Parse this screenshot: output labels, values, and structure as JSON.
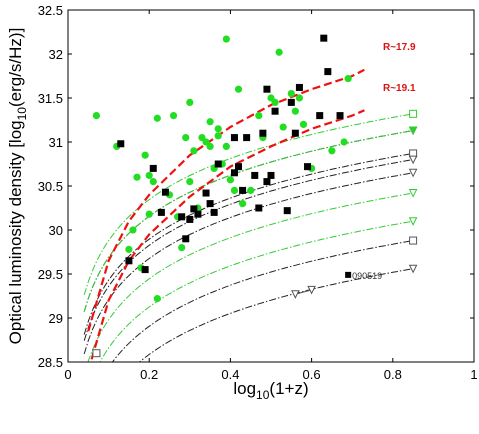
{
  "chart_data": {
    "type": "scatter",
    "xlabel_main": "log",
    "xlabel_sub": "10",
    "xlabel_tail": "(1+z)",
    "ylabel_main": "Optical luminosity density [log",
    "ylabel_sub": "10",
    "ylabel_tail": "(erg/s/Hz)]",
    "xlim": [
      0,
      1
    ],
    "ylim": [
      28.5,
      32.5
    ],
    "xticks": [
      "0",
      "0.2",
      "0.4",
      "0.6",
      "0.8",
      "1"
    ],
    "xtick_values": [
      0,
      0.2,
      0.4,
      0.6,
      0.8,
      1
    ],
    "yticks": [
      "28.5",
      "29",
      "29.5",
      "30",
      "30.5",
      "31",
      "31.5",
      "32",
      "32.5"
    ],
    "ytick_values": [
      28.5,
      29,
      29.5,
      30,
      30.5,
      31,
      31.5,
      32,
      32.5
    ],
    "grid": false,
    "colors": {
      "green": "#22dd22",
      "black": "#000000",
      "red": "#ee1111",
      "green_curve": "#33cc33",
      "black_curve": "#222222",
      "gray_marker": "#555555"
    },
    "annotations": {
      "r179": "R~17.9",
      "r191": "R~19.1",
      "grb": "090519"
    },
    "red_curves": [
      {
        "label_key": "r179",
        "x": [
          0.05,
          0.1,
          0.15,
          0.2,
          0.3,
          0.4,
          0.5,
          0.6,
          0.7,
          0.73
        ],
        "y": [
          28.85,
          29.65,
          30.1,
          30.4,
          30.85,
          31.17,
          31.42,
          31.6,
          31.75,
          31.82
        ]
      },
      {
        "label_key": "r191",
        "x": [
          0.05,
          0.1,
          0.15,
          0.2,
          0.3,
          0.4,
          0.5,
          0.6,
          0.7,
          0.73
        ],
        "y": [
          28.4,
          29.2,
          29.65,
          29.95,
          30.38,
          30.72,
          30.95,
          31.15,
          31.3,
          31.36
        ]
      }
    ],
    "model_curves": [
      {
        "color": "green",
        "style": "dash-dot",
        "y_end": 31.32,
        "marker": "square-open"
      },
      {
        "color": "black",
        "style": "dash-dot",
        "y_end": 31.13,
        "marker": "tri-down-open"
      },
      {
        "color": "green",
        "style": "dash-dot",
        "y_end": 31.13,
        "marker": "tri-down-filled"
      },
      {
        "color": "black",
        "style": "dash-dot",
        "y_end": 30.87,
        "marker": "square-open"
      },
      {
        "color": "black",
        "style": "dash-dot",
        "y_end": 30.8,
        "marker": "tri-down-open"
      },
      {
        "color": "black",
        "style": "dash-dot",
        "y_end": 30.65,
        "marker": "tri-down-open"
      },
      {
        "color": "green",
        "style": "dash-dot",
        "y_end": 30.42,
        "marker": "tri-down-open"
      },
      {
        "color": "green",
        "style": "dash-dot",
        "y_end": 30.1,
        "marker": "tri-down-open"
      },
      {
        "color": "black",
        "style": "dash-dot",
        "y_end": 29.88,
        "marker": "square-open"
      },
      {
        "color": "black",
        "style": "dash-dot",
        "y_end": 29.56,
        "marker": "tri-down-open"
      }
    ],
    "model_curve_x_end": 0.85,
    "series": [
      {
        "name": "",
        "marker": "circle",
        "color": "green",
        "points": [
          [
            0.07,
            31.3
          ],
          [
            0.12,
            30.95
          ],
          [
            0.15,
            29.78
          ],
          [
            0.16,
            30.0
          ],
          [
            0.17,
            30.6
          ],
          [
            0.18,
            29.57
          ],
          [
            0.19,
            30.85
          ],
          [
            0.2,
            30.62
          ],
          [
            0.2,
            30.18
          ],
          [
            0.21,
            30.55
          ],
          [
            0.22,
            31.27
          ],
          [
            0.22,
            29.22
          ],
          [
            0.25,
            30.4
          ],
          [
            0.26,
            31.3
          ],
          [
            0.27,
            30.15
          ],
          [
            0.28,
            29.8
          ],
          [
            0.29,
            31.05
          ],
          [
            0.3,
            31.45
          ],
          [
            0.3,
            30.55
          ],
          [
            0.31,
            30.9
          ],
          [
            0.32,
            30.25
          ],
          [
            0.33,
            31.05
          ],
          [
            0.34,
            31.0
          ],
          [
            0.35,
            31.23
          ],
          [
            0.35,
            30.95
          ],
          [
            0.36,
            30.7
          ],
          [
            0.37,
            31.15
          ],
          [
            0.37,
            31.07
          ],
          [
            0.38,
            30.75
          ],
          [
            0.39,
            30.95
          ],
          [
            0.39,
            32.17
          ],
          [
            0.4,
            30.57
          ],
          [
            0.41,
            30.45
          ],
          [
            0.42,
            31.6
          ],
          [
            0.43,
            30.3
          ],
          [
            0.45,
            30.45
          ],
          [
            0.47,
            31.3
          ],
          [
            0.48,
            31.05
          ],
          [
            0.5,
            31.5
          ],
          [
            0.51,
            31.45
          ],
          [
            0.52,
            32.02
          ],
          [
            0.53,
            31.17
          ],
          [
            0.55,
            31.55
          ],
          [
            0.56,
            31.35
          ],
          [
            0.57,
            31.5
          ],
          [
            0.58,
            31.2
          ],
          [
            0.6,
            30.7
          ],
          [
            0.65,
            30.9
          ],
          [
            0.68,
            31.0
          ],
          [
            0.69,
            31.72
          ]
        ]
      },
      {
        "name": "",
        "marker": "square",
        "color": "black",
        "points": [
          [
            0.13,
            30.98
          ],
          [
            0.15,
            29.65
          ],
          [
            0.19,
            29.55
          ],
          [
            0.21,
            30.7
          ],
          [
            0.23,
            30.2
          ],
          [
            0.24,
            30.43
          ],
          [
            0.28,
            30.15
          ],
          [
            0.29,
            29.9
          ],
          [
            0.3,
            30.12
          ],
          [
            0.31,
            30.24
          ],
          [
            0.32,
            30.18
          ],
          [
            0.34,
            30.42
          ],
          [
            0.35,
            30.3
          ],
          [
            0.36,
            30.2
          ],
          [
            0.37,
            30.75
          ],
          [
            0.41,
            31.05
          ],
          [
            0.41,
            30.65
          ],
          [
            0.42,
            30.72
          ],
          [
            0.43,
            30.45
          ],
          [
            0.44,
            31.05
          ],
          [
            0.46,
            30.62
          ],
          [
            0.47,
            30.25
          ],
          [
            0.48,
            31.1
          ],
          [
            0.49,
            31.6
          ],
          [
            0.49,
            30.55
          ],
          [
            0.5,
            30.62
          ],
          [
            0.51,
            31.35
          ],
          [
            0.54,
            30.22
          ],
          [
            0.55,
            31.45
          ],
          [
            0.56,
            31.1
          ],
          [
            0.57,
            31.62
          ],
          [
            0.59,
            30.72
          ],
          [
            0.62,
            31.3
          ],
          [
            0.63,
            32.18
          ],
          [
            0.64,
            31.8
          ],
          [
            0.67,
            31.3
          ]
        ]
      }
    ],
    "grb_track": {
      "x": [
        0.56,
        0.6
      ],
      "y": [
        29.27,
        29.32
      ],
      "label_x": 0.69,
      "label_y": 29.49
    },
    "endpoint_square": {
      "x": 0.07,
      "y": 28.6
    }
  }
}
